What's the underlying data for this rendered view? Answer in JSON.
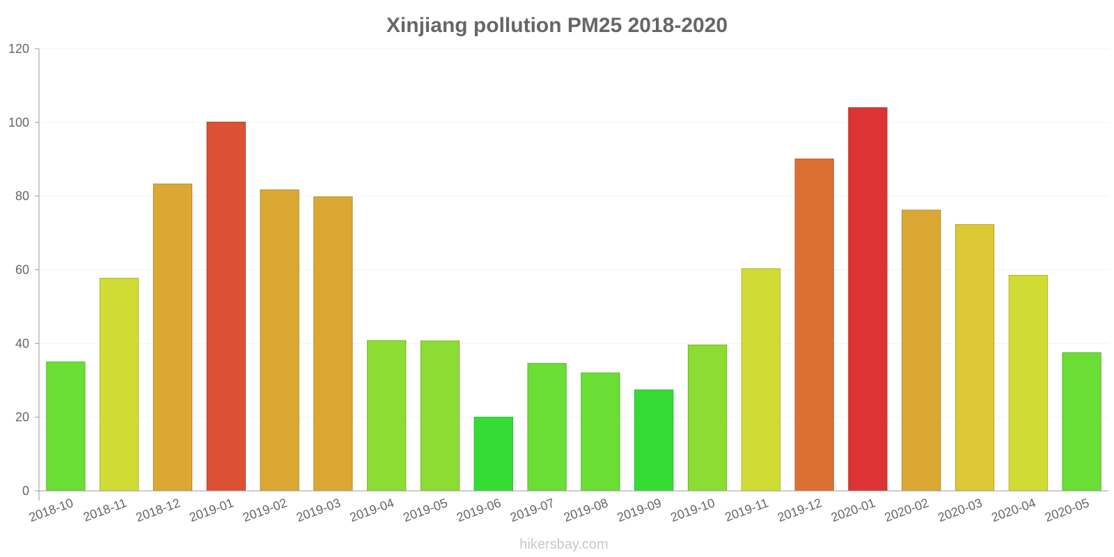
{
  "watermark": "hikersbay.com",
  "chart_data": {
    "type": "bar",
    "title": "Xinjiang pollution PM25 2018-2020",
    "xlabel": "",
    "ylabel": "",
    "ylim": [
      0,
      120
    ],
    "yticks": [
      0,
      20,
      40,
      60,
      80,
      100,
      120
    ],
    "grid": true,
    "categories": [
      "2018-10",
      "2018-11",
      "2018-12",
      "2019-01",
      "2019-02",
      "2019-03",
      "2019-04",
      "2019-05",
      "2019-06",
      "2019-07",
      "2019-08",
      "2019-09",
      "2019-10",
      "2019-11",
      "2019-12",
      "2020-01",
      "2020-02",
      "2020-03",
      "2020-04",
      "2020-05"
    ],
    "values": [
      35,
      57.7,
      83.3,
      100.1,
      81.7,
      79.8,
      40.8,
      40.7,
      20,
      34.6,
      32,
      27.4,
      39.6,
      60.3,
      90.1,
      104,
      76.2,
      72.3,
      58.5,
      37.5
    ],
    "colors": [
      "#6ade34",
      "#d0dc34",
      "#dca834",
      "#dc5034",
      "#dca834",
      "#dca834",
      "#8cdc34",
      "#8cdc34",
      "#34dc34",
      "#6ade34",
      "#6ade34",
      "#34dc34",
      "#8cdc34",
      "#d0dc34",
      "#dc7034",
      "#dc3434",
      "#dca834",
      "#dcc834",
      "#d0dc34",
      "#6ade34"
    ]
  }
}
